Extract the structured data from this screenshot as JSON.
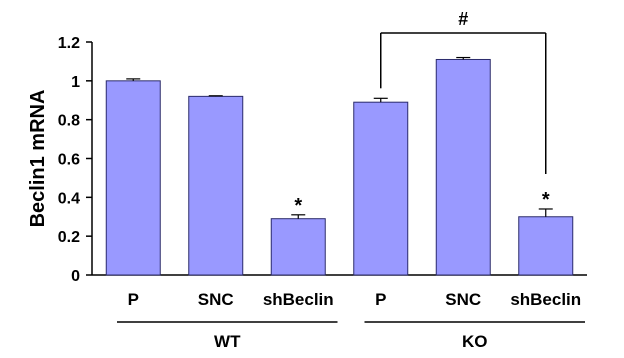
{
  "chart_data": {
    "type": "bar",
    "title": "",
    "ylabel": "Beclin1 mRNA",
    "xlabel": "",
    "ylim": [
      0,
      1.2
    ],
    "yticks": [
      0,
      0.2,
      0.4,
      0.6,
      0.8,
      1,
      1.2
    ],
    "ytick_labels": [
      "0",
      "0.2",
      "0.4",
      "0.6",
      "0.8",
      "1",
      "1.2"
    ],
    "categories": [
      "P",
      "SNC",
      "shBeclin",
      "P",
      "SNC",
      "shBeclin"
    ],
    "groups": [
      {
        "label": "WT",
        "categories": [
          0,
          1,
          2
        ]
      },
      {
        "label": "KO",
        "categories": [
          3,
          4,
          5
        ]
      }
    ],
    "values": [
      1.0,
      0.92,
      0.29,
      0.89,
      1.11,
      0.3
    ],
    "errors": [
      0.01,
      0.003,
      0.02,
      0.02,
      0.01,
      0.04
    ],
    "significance_marks": [
      "",
      "",
      "*",
      "",
      "",
      "*"
    ],
    "bracket": {
      "from": 3,
      "to": 5,
      "label": "#"
    },
    "grid": false,
    "legend": "none",
    "colors": {
      "bar_fill": "#9999ff",
      "bar_stroke": "#2b2b6b",
      "axis": "#000000"
    }
  }
}
